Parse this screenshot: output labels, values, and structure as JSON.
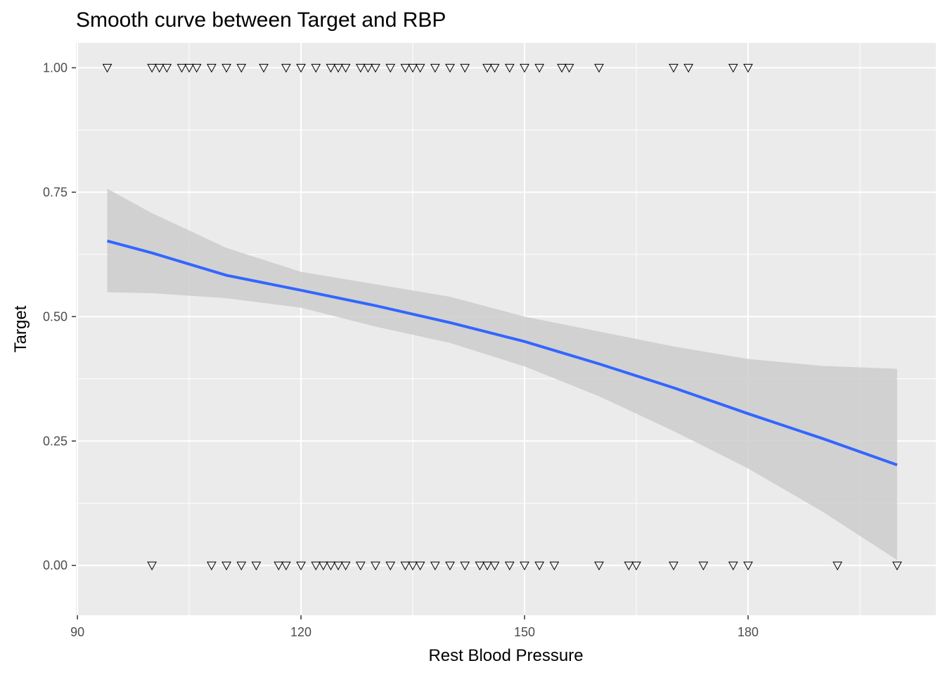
{
  "chart_data": {
    "type": "scatter",
    "title": "Smooth curve between Target and RBP",
    "xlabel": "Rest Blood Pressure",
    "ylabel": "Target",
    "xlim": [
      89.8,
      205.2
    ],
    "ylim": [
      -0.1,
      1.05
    ],
    "x_ticks": [
      90,
      120,
      150,
      180
    ],
    "x_tick_labels": [
      "90",
      "120",
      "150",
      "180"
    ],
    "y_ticks": [
      0,
      0.25,
      0.5,
      0.75,
      1.0
    ],
    "y_tick_labels": [
      "0.00",
      "0.25",
      "0.50",
      "0.75",
      "1.00"
    ],
    "grid": true,
    "panel_background": "#ebebeb",
    "grid_color": "#ffffff",
    "series": [
      {
        "type": "scatter",
        "marker": "down-triangle",
        "points": [
          [
            94,
            1
          ],
          [
            100,
            1
          ],
          [
            101,
            1
          ],
          [
            102,
            1
          ],
          [
            104,
            1
          ],
          [
            105,
            1
          ],
          [
            106,
            1
          ],
          [
            108,
            1
          ],
          [
            110,
            1
          ],
          [
            112,
            1
          ],
          [
            115,
            1
          ],
          [
            118,
            1
          ],
          [
            120,
            1
          ],
          [
            122,
            1
          ],
          [
            124,
            1
          ],
          [
            125,
            1
          ],
          [
            126,
            1
          ],
          [
            128,
            1
          ],
          [
            129,
            1
          ],
          [
            130,
            1
          ],
          [
            132,
            1
          ],
          [
            134,
            1
          ],
          [
            135,
            1
          ],
          [
            136,
            1
          ],
          [
            138,
            1
          ],
          [
            140,
            1
          ],
          [
            142,
            1
          ],
          [
            145,
            1
          ],
          [
            146,
            1
          ],
          [
            148,
            1
          ],
          [
            150,
            1
          ],
          [
            152,
            1
          ],
          [
            155,
            1
          ],
          [
            156,
            1
          ],
          [
            160,
            1
          ],
          [
            170,
            1
          ],
          [
            172,
            1
          ],
          [
            178,
            1
          ],
          [
            180,
            1
          ],
          [
            100,
            0
          ],
          [
            108,
            0
          ],
          [
            110,
            0
          ],
          [
            112,
            0
          ],
          [
            114,
            0
          ],
          [
            117,
            0
          ],
          [
            118,
            0
          ],
          [
            120,
            0
          ],
          [
            122,
            0
          ],
          [
            123,
            0
          ],
          [
            124,
            0
          ],
          [
            125,
            0
          ],
          [
            126,
            0
          ],
          [
            128,
            0
          ],
          [
            130,
            0
          ],
          [
            132,
            0
          ],
          [
            134,
            0
          ],
          [
            135,
            0
          ],
          [
            136,
            0
          ],
          [
            138,
            0
          ],
          [
            140,
            0
          ],
          [
            142,
            0
          ],
          [
            144,
            0
          ],
          [
            145,
            0
          ],
          [
            146,
            0
          ],
          [
            148,
            0
          ],
          [
            150,
            0
          ],
          [
            152,
            0
          ],
          [
            154,
            0
          ],
          [
            160,
            0
          ],
          [
            164,
            0
          ],
          [
            165,
            0
          ],
          [
            170,
            0
          ],
          [
            174,
            0
          ],
          [
            178,
            0
          ],
          [
            180,
            0
          ],
          [
            192,
            0
          ],
          [
            200,
            0
          ]
        ]
      },
      {
        "type": "line",
        "color": "#3366ff",
        "x": [
          94,
          100,
          110,
          120,
          130,
          140,
          150,
          160,
          170,
          180,
          190,
          200
        ],
        "y": [
          0.652,
          0.628,
          0.583,
          0.553,
          0.522,
          0.488,
          0.45,
          0.405,
          0.357,
          0.305,
          0.255,
          0.202
        ]
      },
      {
        "type": "confidence-band",
        "color": "#cccccc",
        "x": [
          94,
          100,
          110,
          120,
          130,
          140,
          150,
          160,
          170,
          180,
          190,
          200
        ],
        "upper": [
          0.757,
          0.708,
          0.638,
          0.59,
          0.565,
          0.54,
          0.5,
          0.47,
          0.44,
          0.415,
          0.401,
          0.395
        ],
        "lower": [
          0.549,
          0.547,
          0.537,
          0.518,
          0.48,
          0.447,
          0.4,
          0.34,
          0.27,
          0.195,
          0.108,
          0.011
        ]
      }
    ]
  }
}
